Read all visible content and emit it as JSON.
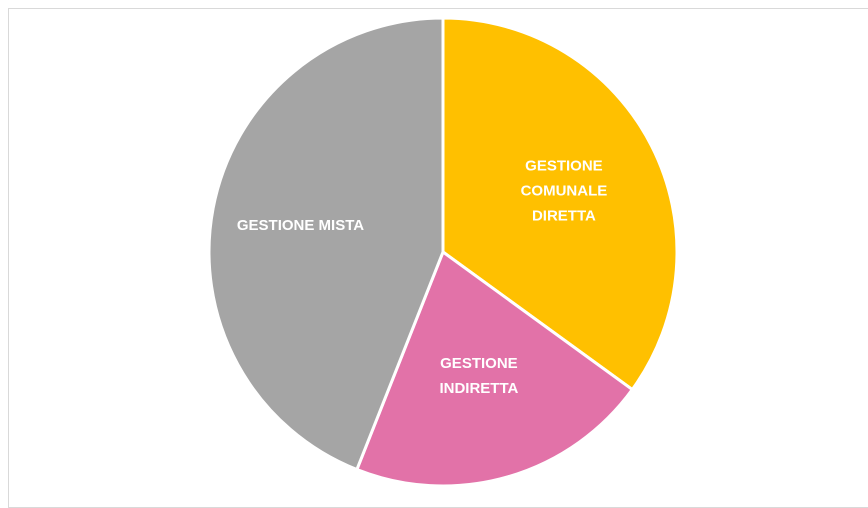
{
  "chart_data": {
    "type": "pie",
    "title": "",
    "slices": [
      {
        "label_lines": [
          "GESTIONE",
          "COMUNALE",
          "DIRETTA"
        ],
        "value": 35,
        "color": "#FFC000"
      },
      {
        "label_lines": [
          "GESTIONE",
          "INDIRETTA"
        ],
        "value": 21,
        "color": "#E272A8"
      },
      {
        "label_lines": [
          "GESTIONE MISTA"
        ],
        "value": 44,
        "color": "#A5A5A5"
      }
    ],
    "start_angle_deg": 0,
    "direction": "clockwise",
    "border_color": "#FFFFFF",
    "legend": "none",
    "data_labels": "inside"
  }
}
